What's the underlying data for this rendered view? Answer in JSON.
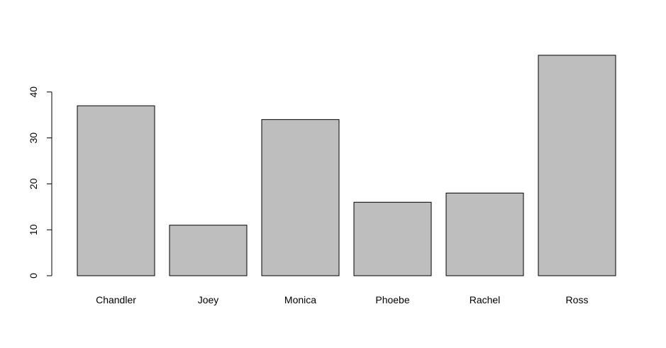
{
  "chart_data": {
    "type": "bar",
    "title": "",
    "xlabel": "",
    "ylabel": "",
    "categories": [
      "Chandler",
      "Joey",
      "Monica",
      "Phoebe",
      "Rachel",
      "Ross"
    ],
    "values": [
      37,
      11,
      34,
      16,
      18,
      48
    ],
    "ylim": [
      0,
      48
    ],
    "yticks": [
      0,
      10,
      20,
      30,
      40
    ],
    "ytick_labels": [
      "0",
      "10",
      "20",
      "30",
      "40"
    ],
    "grid": false,
    "legend": "none",
    "colors": {
      "bar_fill": "#bebebe",
      "bar_border": "#000000",
      "axis": "#000000",
      "background": "#ffffff"
    }
  }
}
